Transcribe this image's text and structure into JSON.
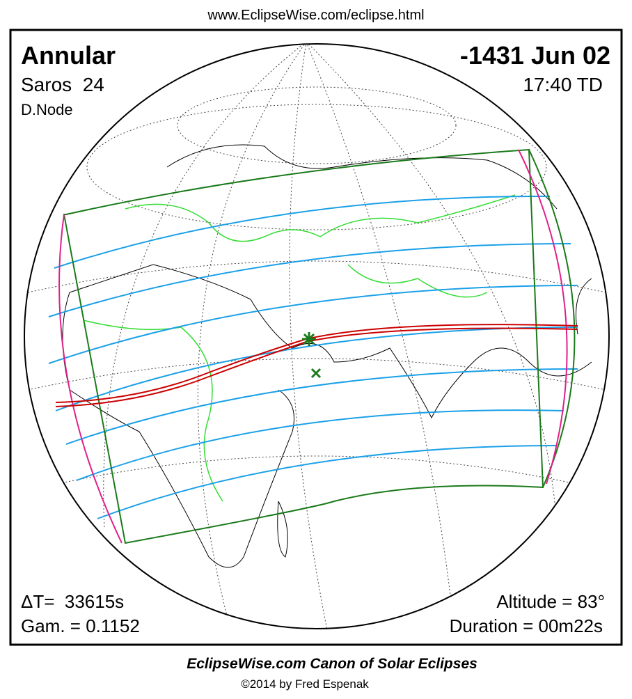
{
  "header": {
    "url": "www.EclipseWise.com/eclipse.html"
  },
  "map": {
    "eclipse_type": "Annular",
    "date": "-1431 Jun 02",
    "saros": "Saros  24",
    "time": "17:40 TD",
    "node": "D.Node",
    "delta_t": "ΔT=  33615s",
    "gamma": "Gam. = 0.1152",
    "altitude": "Altitude = 83°",
    "duration": "Duration = 00m22s"
  },
  "footer": {
    "title": "EclipseWise.com Canon of Solar Eclipses",
    "copyright": "©2014 by Fred Espenak"
  }
}
